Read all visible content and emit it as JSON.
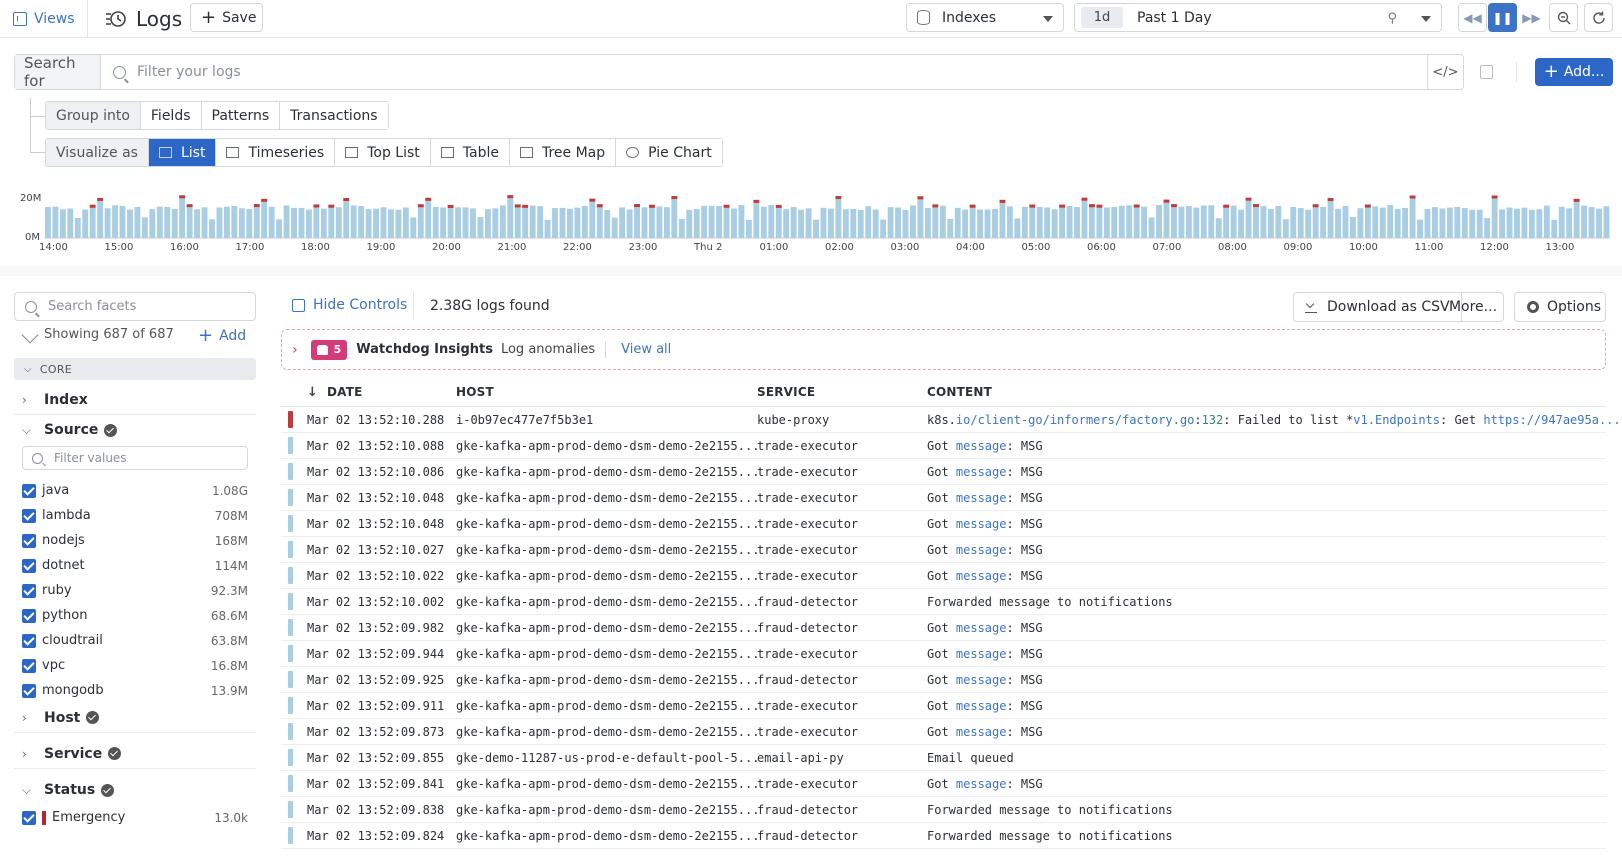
{
  "topbar": {
    "views_label": "Views",
    "title": "Logs",
    "save_label": "Save",
    "indexes_label": "Indexes",
    "time_chip": "1d",
    "time_label": "Past 1 Day"
  },
  "search": {
    "for_label": "Search for",
    "placeholder": "Filter your logs",
    "add_label": "Add..."
  },
  "group": {
    "lead": "Group into",
    "options": [
      "Fields",
      "Patterns",
      "Transactions"
    ]
  },
  "visualize": {
    "lead": "Visualize as",
    "options": [
      "List",
      "Timeseries",
      "Top List",
      "Table",
      "Tree Map",
      "Pie Chart"
    ],
    "selected": "List"
  },
  "histogram": {
    "y_labels": [
      "20M",
      "0M"
    ],
    "x_labels": [
      "14:00",
      "15:00",
      "16:00",
      "17:00",
      "18:00",
      "19:00",
      "20:00",
      "21:00",
      "22:00",
      "23:00",
      "Thu 2",
      "01:00",
      "02:00",
      "03:00",
      "04:00",
      "05:00",
      "06:00",
      "07:00",
      "08:00",
      "09:00",
      "10:00",
      "11:00",
      "12:00",
      "13:00"
    ],
    "colors": {
      "info": "#a9cde2",
      "error": "#c23b3b"
    }
  },
  "facets": {
    "search_placeholder": "Search facets",
    "showing": "Showing 687 of 687",
    "add_label": "Add",
    "core_label": "CORE",
    "index_label": "Index",
    "source_label": "Source",
    "filter_placeholder": "Filter values",
    "sources": [
      {
        "name": "java",
        "count": "1.08G"
      },
      {
        "name": "lambda",
        "count": "708M"
      },
      {
        "name": "nodejs",
        "count": "168M"
      },
      {
        "name": "dotnet",
        "count": "114M"
      },
      {
        "name": "ruby",
        "count": "92.3M"
      },
      {
        "name": "python",
        "count": "68.6M"
      },
      {
        "name": "cloudtrail",
        "count": "63.8M"
      },
      {
        "name": "vpc",
        "count": "16.8M"
      },
      {
        "name": "mongodb",
        "count": "13.9M"
      }
    ],
    "host_label": "Host",
    "service_label": "Service",
    "status_label": "Status",
    "status_item": {
      "name": "Emergency",
      "count": "13.0k"
    }
  },
  "controls": {
    "hide_label": "Hide Controls",
    "logs_found": "2.38G logs found",
    "csv_label": "Download as CSV",
    "more_label": "More...",
    "options_label": "Options"
  },
  "watchdog": {
    "count": "5",
    "title": "Watchdog Insights",
    "subtitle": "Log anomalies",
    "view_all": "View all"
  },
  "table": {
    "headers": {
      "date": "DATE",
      "host": "HOST",
      "service": "SERVICE",
      "content": "CONTENT"
    },
    "rows": [
      {
        "date": "Mar 02 13:52:10.288",
        "host": "i-0b97ec477e7f5b3e1",
        "service": "kube-proxy",
        "status": "error",
        "c1": "k8s.",
        "c2": "io/client-go/informers/factory.go",
        "c3": ":",
        "c4": "132",
        "c5": ": Failed to list *",
        "c6": "v1.Endpoints",
        "c7": ": Get ",
        "c8": "https://947ae95a..."
      },
      {
        "date": "Mar 02 13:52:10.088",
        "host": "gke-kafka-apm-prod-demo-dsm-demo-2e2155...",
        "service": "trade-executor",
        "status": "info",
        "c1": "Got ",
        "c2": "message",
        "c3": ": MSG"
      },
      {
        "date": "Mar 02 13:52:10.086",
        "host": "gke-kafka-apm-prod-demo-dsm-demo-2e2155...",
        "service": "trade-executor",
        "status": "info",
        "c1": "Got ",
        "c2": "message",
        "c3": ": MSG"
      },
      {
        "date": "Mar 02 13:52:10.048",
        "host": "gke-kafka-apm-prod-demo-dsm-demo-2e2155...",
        "service": "trade-executor",
        "status": "info",
        "c1": "Got ",
        "c2": "message",
        "c3": ": MSG"
      },
      {
        "date": "Mar 02 13:52:10.048",
        "host": "gke-kafka-apm-prod-demo-dsm-demo-2e2155...",
        "service": "trade-executor",
        "status": "info",
        "c1": "Got ",
        "c2": "message",
        "c3": ": MSG"
      },
      {
        "date": "Mar 02 13:52:10.027",
        "host": "gke-kafka-apm-prod-demo-dsm-demo-2e2155...",
        "service": "trade-executor",
        "status": "info",
        "c1": "Got ",
        "c2": "message",
        "c3": ": MSG"
      },
      {
        "date": "Mar 02 13:52:10.022",
        "host": "gke-kafka-apm-prod-demo-dsm-demo-2e2155...",
        "service": "trade-executor",
        "status": "info",
        "c1": "Got ",
        "c2": "message",
        "c3": ": MSG"
      },
      {
        "date": "Mar 02 13:52:10.002",
        "host": "gke-kafka-apm-prod-demo-dsm-demo-2e2155...",
        "service": "fraud-detector",
        "status": "info",
        "c1": "Forwarded message to notifications"
      },
      {
        "date": "Mar 02 13:52:09.982",
        "host": "gke-kafka-apm-prod-demo-dsm-demo-2e2155...",
        "service": "fraud-detector",
        "status": "info",
        "c1": "Got ",
        "c2": "message",
        "c3": ": MSG"
      },
      {
        "date": "Mar 02 13:52:09.944",
        "host": "gke-kafka-apm-prod-demo-dsm-demo-2e2155...",
        "service": "trade-executor",
        "status": "info",
        "c1": "Got ",
        "c2": "message",
        "c3": ": MSG"
      },
      {
        "date": "Mar 02 13:52:09.925",
        "host": "gke-kafka-apm-prod-demo-dsm-demo-2e2155...",
        "service": "fraud-detector",
        "status": "info",
        "c1": "Got ",
        "c2": "message",
        "c3": ": MSG"
      },
      {
        "date": "Mar 02 13:52:09.911",
        "host": "gke-kafka-apm-prod-demo-dsm-demo-2e2155...",
        "service": "trade-executor",
        "status": "info",
        "c1": "Got ",
        "c2": "message",
        "c3": ": MSG"
      },
      {
        "date": "Mar 02 13:52:09.873",
        "host": "gke-kafka-apm-prod-demo-dsm-demo-2e2155...",
        "service": "trade-executor",
        "status": "info",
        "c1": "Got ",
        "c2": "message",
        "c3": ": MSG"
      },
      {
        "date": "Mar 02 13:52:09.855",
        "host": "gke-demo-11287-us-prod-e-default-pool-5...",
        "service": "email-api-py",
        "status": "info",
        "c1": "Email queued"
      },
      {
        "date": "Mar 02 13:52:09.841",
        "host": "gke-kafka-apm-prod-demo-dsm-demo-2e2155...",
        "service": "trade-executor",
        "status": "info",
        "c1": "Got ",
        "c2": "message",
        "c3": ": MSG"
      },
      {
        "date": "Mar 02 13:52:09.838",
        "host": "gke-kafka-apm-prod-demo-dsm-demo-2e2155...",
        "service": "fraud-detector",
        "status": "info",
        "c1": "Forwarded message to notifications"
      },
      {
        "date": "Mar 02 13:52:09.824",
        "host": "gke-kafka-apm-prod-demo-dsm-demo-2e2155...",
        "service": "fraud-detector",
        "status": "info",
        "c1": "Forwarded message to notifications"
      }
    ]
  }
}
